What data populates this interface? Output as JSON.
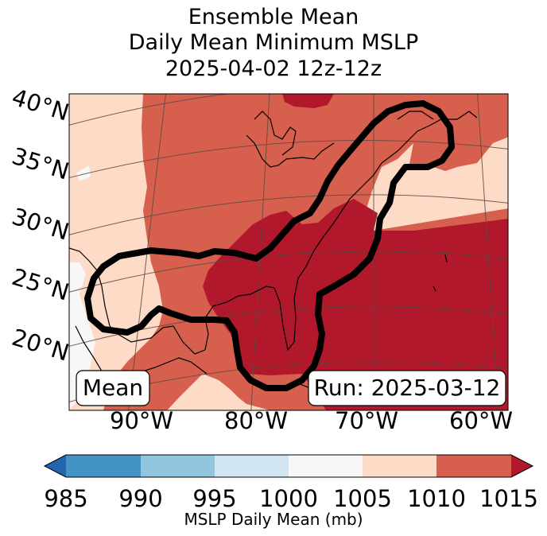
{
  "title": {
    "line1": "Ensemble Mean",
    "line2": "Daily Mean Minimum MSLP",
    "line3": "2025-04-02 12z-12z"
  },
  "map": {
    "lat_labels": [
      "40°N",
      "35°N",
      "30°N",
      "25°N",
      "20°N"
    ],
    "lon_labels": [
      "90°W",
      "80°W",
      "70°W",
      "60°W"
    ],
    "mean_label": "Mean",
    "run_label": "Run: 2025-03-12"
  },
  "colorbar": {
    "ticks": [
      "985",
      "990",
      "995",
      "1000",
      "1005",
      "1010",
      "1015"
    ],
    "label": "MSLP Daily Mean (mb)",
    "colors": [
      "#2166ac",
      "#4393c3",
      "#92c5de",
      "#d1e5f0",
      "#f7f7f7",
      "#fddbc7",
      "#d6604d",
      "#b2182b"
    ]
  }
}
